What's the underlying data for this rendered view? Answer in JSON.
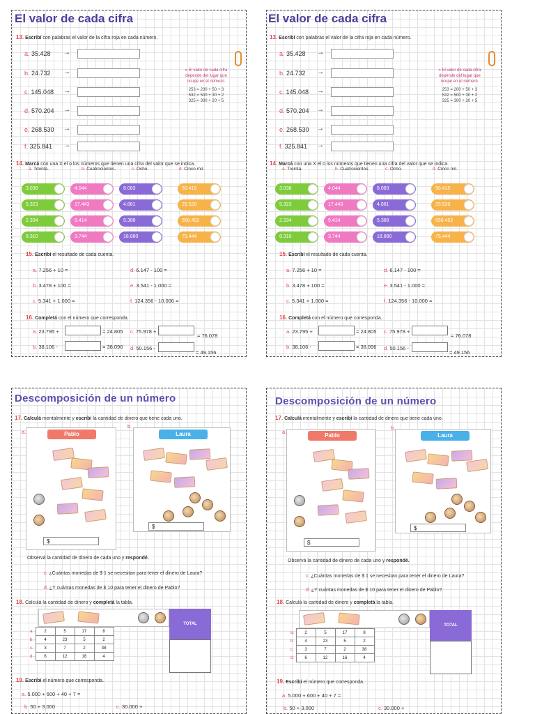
{
  "sec1": {
    "title": "El valor de cada cifra",
    "ex13": {
      "num": "13.",
      "instr_bold": "Escribí",
      "instr": " con palabras el valor de la cifra roja en cada número.",
      "items": [
        {
          "lbl": "a.",
          "val": "35.428"
        },
        {
          "lbl": "b.",
          "val": "24.732"
        },
        {
          "lbl": "c.",
          "val": "145.048"
        },
        {
          "lbl": "d.",
          "val": "570.204"
        },
        {
          "lbl": "e.",
          "val": "268.530"
        },
        {
          "lbl": "f.",
          "val": "325.841"
        }
      ],
      "note_line1": "» El valor de cada cifra",
      "note_line2": "depende del lugar que",
      "note_line3": "ocupe en el número.",
      "note_eq1": "253 = 200 + 50 + 3",
      "note_eq2": "532 = 500 + 30 + 2",
      "note_eq3": "325 = 300 + 20 + 5"
    },
    "ex14": {
      "num": "14.",
      "instr_bold": "Marcá",
      "instr": " con una X el o los números que tienen una cifra del valor que se indica.",
      "headers": [
        {
          "lbl": "a.",
          "text": "Treinta."
        },
        {
          "lbl": "b.",
          "text": "Cuatrocientos."
        },
        {
          "lbl": "c.",
          "text": "Ocho."
        },
        {
          "lbl": "d.",
          "text": "Cinco mil."
        }
      ],
      "col_a": [
        "3.038",
        "5.323",
        "2.334",
        "8.310"
      ],
      "col_b": [
        "4.044",
        "17.443",
        "9.414",
        "3.744"
      ],
      "col_c": [
        "8.083",
        "4.881",
        "5.388",
        "18.880"
      ],
      "col_d": [
        "50.415",
        "25.520",
        "550.452",
        "75.444"
      ]
    },
    "ex15": {
      "num": "15.",
      "instr_bold": "Escribí",
      "instr": " el resultado de cada cuenta.",
      "items": [
        {
          "lbl": "a.",
          "text": "7.256 + 10 ="
        },
        {
          "lbl": "b.",
          "text": "3.478 + 100 ="
        },
        {
          "lbl": "c.",
          "text": "5.341 + 1.000 ="
        },
        {
          "lbl": "d.",
          "text": "6.147 - 100 ="
        },
        {
          "lbl": "e.",
          "text": "3.541 - 1.000 ="
        },
        {
          "lbl": "f.",
          "text": "124.356 - 10.000 ="
        }
      ]
    },
    "ex16": {
      "num": "16.",
      "instr_bold": "Completá",
      "instr": " con el número que corresponda.",
      "a_lbl": "a.",
      "a_left": "23.795 +",
      "a_right": "= 24.805",
      "b_lbl": "b.",
      "b_left": "38.106 -",
      "b_right": "= 38.096",
      "c_lbl": "c.",
      "c_left": "75.978 +",
      "c_right": "= 76.078",
      "d_lbl": "d.",
      "d_left": "50.156 -",
      "d_right": "= 49.156"
    }
  },
  "sec2": {
    "title": "Descomposición de un número",
    "ex17": {
      "num": "17.",
      "instr_bold1": "Calculá",
      "instr_mid": " mentalmente y ",
      "instr_bold2": "escribí",
      "instr": " la cantidad de dinero que tiene cada uno.",
      "lbl_a": "a.",
      "lbl_b": "b.",
      "name_a": "Pablo",
      "name_b": "Laura",
      "dollar": "$",
      "observe_pre": "Observá la cantidad de dinero de cada uno y ",
      "observe_bold": "respondé.",
      "qc_lbl": "c.",
      "qc": "¿Cuántas monedas de $ 1 se necesitan para tener el dinero de Laura?",
      "qd_lbl": "d.",
      "qd": "¿Y cuántas monedas de $ 10 para tener el dinero de Pablo?"
    },
    "ex18": {
      "num": "18.",
      "instr_pre": "Calculá la cantidad de dinero y ",
      "instr_bold": "completá",
      "instr": " la tabla.",
      "total": "TOTAL",
      "rows": [
        {
          "lbl": "a.",
          "cells": [
            "2",
            "5",
            "17",
            "8"
          ]
        },
        {
          "lbl": "b.",
          "cells": [
            "4",
            "23",
            "5",
            "2"
          ]
        },
        {
          "lbl": "c.",
          "cells": [
            "3",
            "7",
            "2",
            "38"
          ]
        },
        {
          "lbl": "d.",
          "cells": [
            "6",
            "12",
            "16",
            "4"
          ]
        }
      ]
    },
    "ex19": {
      "num": "19.",
      "instr_bold": "Escribí",
      "instr": " el número que corresponda.",
      "a_lbl": "a.",
      "a": "5.000 + 600 + 40 + 7 =",
      "b_lbl": "b.",
      "b": "50 + 3.000",
      "c_lbl": "c.",
      "c": "30.000 +"
    }
  }
}
